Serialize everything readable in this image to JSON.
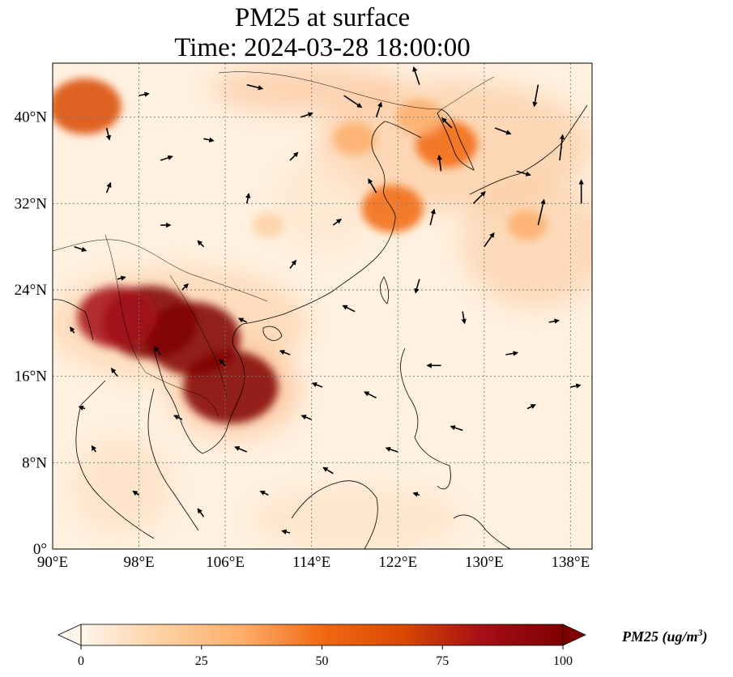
{
  "title": {
    "line1": "PM25 at surface",
    "line2": "Time: 2024-03-28 18:00:00"
  },
  "map": {
    "lon_range": [
      90,
      140
    ],
    "lat_range": [
      0,
      45
    ],
    "lon_ticks": [
      {
        "value": 90,
        "label": "90°E"
      },
      {
        "value": 98,
        "label": "98°E"
      },
      {
        "value": 106,
        "label": "106°E"
      },
      {
        "value": 114,
        "label": "114°E"
      },
      {
        "value": 122,
        "label": "122°E"
      },
      {
        "value": 130,
        "label": "130°E"
      },
      {
        "value": 138,
        "label": "138°E"
      }
    ],
    "lat_ticks": [
      {
        "value": 0,
        "label": "0°"
      },
      {
        "value": 8,
        "label": "8°N"
      },
      {
        "value": 16,
        "label": "16°N"
      },
      {
        "value": 24,
        "label": "24°N"
      },
      {
        "value": 32,
        "label": "32°N"
      },
      {
        "value": 40,
        "label": "40°N"
      }
    ],
    "grid": true
  },
  "colorbar": {
    "label": "PM25 (ug/m",
    "label_sup": "3",
    "label_close": ")",
    "min": 0,
    "max": 100,
    "ticks": [
      "0",
      "25",
      "50",
      "75",
      "100"
    ],
    "colors": [
      "#fff5eb",
      "#fdd0a2",
      "#fdae6b",
      "#f16913",
      "#d94801",
      "#a50f15",
      "#7f0000"
    ]
  },
  "hotspots": [
    {
      "lon": 99,
      "lat": 21,
      "value": 100
    },
    {
      "lon": 103,
      "lat": 19.5,
      "value": 100
    },
    {
      "lon": 106.5,
      "lat": 15,
      "value": 100
    },
    {
      "lon": 96,
      "lat": 21.5,
      "value": 80
    },
    {
      "lon": 126.5,
      "lat": 37.5,
      "value": 55
    },
    {
      "lon": 121.5,
      "lat": 31.5,
      "value": 55
    },
    {
      "lon": 124,
      "lat": 40,
      "value": 35
    },
    {
      "lon": 93,
      "lat": 41,
      "value": 70
    },
    {
      "lon": 118,
      "lat": 38,
      "value": 30
    },
    {
      "lon": 134,
      "lat": 30,
      "value": 25
    },
    {
      "lon": 110,
      "lat": 30,
      "value": 15
    }
  ],
  "wind_vectors": [
    {
      "lon": 95,
      "lat": 39,
      "u": 0.3,
      "v": -1.2
    },
    {
      "lon": 98,
      "lat": 42,
      "u": 1.0,
      "v": 0.2
    },
    {
      "lon": 100,
      "lat": 36,
      "u": 1.2,
      "v": 0.4
    },
    {
      "lon": 104,
      "lat": 38,
      "u": 1.0,
      "v": -0.2
    },
    {
      "lon": 108,
      "lat": 43,
      "u": 1.6,
      "v": -0.4
    },
    {
      "lon": 112,
      "lat": 36,
      "u": 0.8,
      "v": 0.8
    },
    {
      "lon": 117,
      "lat": 42,
      "u": 1.8,
      "v": -1.2
    },
    {
      "lon": 120,
      "lat": 40,
      "u": 0.5,
      "v": 1.5
    },
    {
      "lon": 124,
      "lat": 43,
      "u": -0.6,
      "v": 1.8
    },
    {
      "lon": 127,
      "lat": 39,
      "u": -1.0,
      "v": 1.0
    },
    {
      "lon": 131,
      "lat": 39,
      "u": 1.6,
      "v": -0.6
    },
    {
      "lon": 135,
      "lat": 43,
      "u": -0.4,
      "v": -2.2
    },
    {
      "lon": 137,
      "lat": 36,
      "u": 0.3,
      "v": 2.6
    },
    {
      "lon": 139,
      "lat": 32,
      "u": 0,
      "v": 2.4
    },
    {
      "lon": 135,
      "lat": 30,
      "u": 0.6,
      "v": 2.6
    },
    {
      "lon": 129,
      "lat": 32,
      "u": 1.2,
      "v": 1.2
    },
    {
      "lon": 125,
      "lat": 30,
      "u": 0.4,
      "v": 1.6
    },
    {
      "lon": 120,
      "lat": 33,
      "u": -0.8,
      "v": 1.4
    },
    {
      "lon": 116,
      "lat": 30,
      "u": 0.8,
      "v": 0.6
    },
    {
      "lon": 112,
      "lat": 26,
      "u": 0.6,
      "v": 0.8
    },
    {
      "lon": 108,
      "lat": 32,
      "u": 0.2,
      "v": 1.0
    },
    {
      "lon": 104,
      "lat": 28,
      "u": -0.6,
      "v": 0.6
    },
    {
      "lon": 100,
      "lat": 30,
      "u": 1.0,
      "v": 0
    },
    {
      "lon": 95,
      "lat": 33,
      "u": 0.4,
      "v": 1.0
    },
    {
      "lon": 92,
      "lat": 28,
      "u": 1.2,
      "v": -0.4
    },
    {
      "lon": 96,
      "lat": 25,
      "u": 0.8,
      "v": 0.2
    },
    {
      "lon": 102,
      "lat": 24,
      "u": 0.6,
      "v": 0.6
    },
    {
      "lon": 108,
      "lat": 21,
      "u": -0.8,
      "v": 0.4
    },
    {
      "lon": 112,
      "lat": 18,
      "u": -1.0,
      "v": 0.4
    },
    {
      "lon": 118,
      "lat": 22,
      "u": -1.2,
      "v": 0.6
    },
    {
      "lon": 124,
      "lat": 25,
      "u": -0.4,
      "v": -1.4
    },
    {
      "lon": 128,
      "lat": 22,
      "u": 0.2,
      "v": -1.2
    },
    {
      "lon": 132,
      "lat": 18,
      "u": 1.2,
      "v": 0.2
    },
    {
      "lon": 136,
      "lat": 21,
      "u": 1.0,
      "v": 0.2
    },
    {
      "lon": 126,
      "lat": 17,
      "u": -1.4,
      "v": 0
    },
    {
      "lon": 120,
      "lat": 14,
      "u": -1.2,
      "v": 0.6
    },
    {
      "lon": 114,
      "lat": 12,
      "u": -1.0,
      "v": 0.4
    },
    {
      "lon": 108,
      "lat": 9,
      "u": -1.2,
      "v": 0.5
    },
    {
      "lon": 102,
      "lat": 12,
      "u": -0.8,
      "v": 0.4
    },
    {
      "lon": 96,
      "lat": 16,
      "u": -0.6,
      "v": 0.8
    },
    {
      "lon": 94,
      "lat": 9,
      "u": -0.4,
      "v": 0.6
    },
    {
      "lon": 98,
      "lat": 5,
      "u": -0.6,
      "v": 0.4
    },
    {
      "lon": 104,
      "lat": 3,
      "u": -0.6,
      "v": 0.8
    },
    {
      "lon": 110,
      "lat": 5,
      "u": -0.8,
      "v": 0.4
    },
    {
      "lon": 116,
      "lat": 7,
      "u": -1.0,
      "v": 0.6
    },
    {
      "lon": 122,
      "lat": 9,
      "u": -1.2,
      "v": 0.4
    },
    {
      "lon": 128,
      "lat": 11,
      "u": -1.2,
      "v": 0.4
    },
    {
      "lon": 134,
      "lat": 13,
      "u": 0.8,
      "v": 0.4
    },
    {
      "lon": 138,
      "lat": 15,
      "u": 1.0,
      "v": 0.2
    },
    {
      "lon": 124,
      "lat": 5,
      "u": -0.6,
      "v": 0.2
    },
    {
      "lon": 112,
      "lat": 1.5,
      "u": -0.8,
      "v": 0.2
    },
    {
      "lon": 92,
      "lat": 20,
      "u": -0.4,
      "v": 0.6
    },
    {
      "lon": 93,
      "lat": 13,
      "u": -0.6,
      "v": 0.2
    },
    {
      "lon": 130,
      "lat": 28,
      "u": 1.0,
      "v": 1.4
    },
    {
      "lon": 133,
      "lat": 35,
      "u": 1.4,
      "v": -0.4
    },
    {
      "lon": 115,
      "lat": 15,
      "u": -1.0,
      "v": 0.4
    },
    {
      "lon": 106,
      "lat": 17,
      "u": -0.6,
      "v": 0.6
    },
    {
      "lon": 100,
      "lat": 18,
      "u": -0.6,
      "v": 0.8
    },
    {
      "lon": 126,
      "lat": 35,
      "u": -0.2,
      "v": 1.6
    },
    {
      "lon": 113,
      "lat": 40,
      "u": 1.2,
      "v": 0.4
    }
  ]
}
